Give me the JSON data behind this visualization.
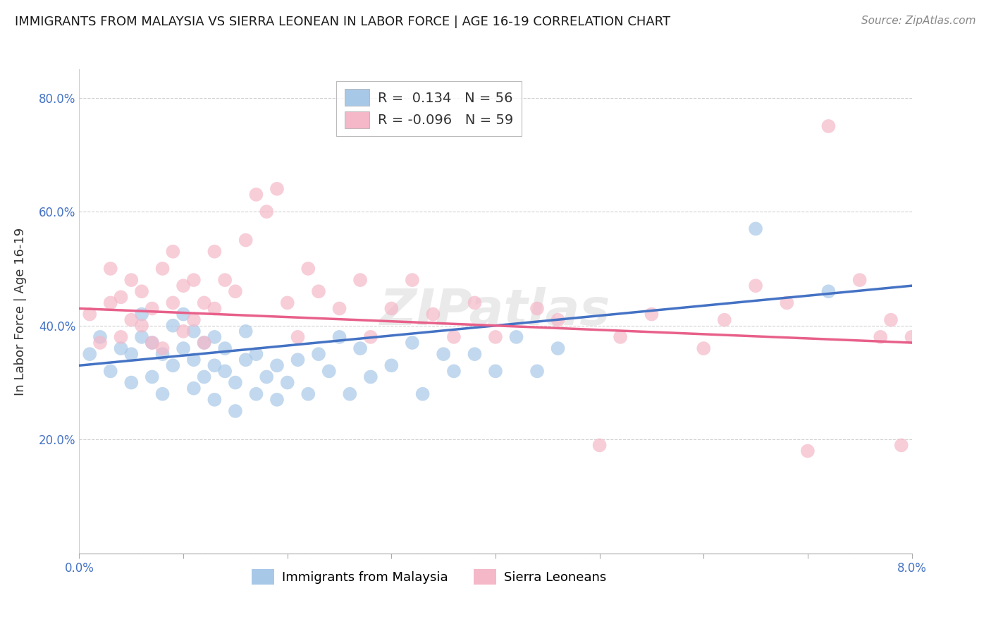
{
  "title": "IMMIGRANTS FROM MALAYSIA VS SIERRA LEONEAN IN LABOR FORCE | AGE 16-19 CORRELATION CHART",
  "source": "Source: ZipAtlas.com",
  "ylabel": "In Labor Force | Age 16-19",
  "watermark": "ZIPatlas",
  "malaysia_R": 0.134,
  "malaysia_N": 56,
  "sierraleone_R": -0.096,
  "sierraleone_N": 59,
  "x_label": "Immigrants from Malaysia",
  "x2_label": "Sierra Leoneans",
  "x_min": 0.0,
  "x_max": 0.08,
  "y_min": 0.0,
  "y_max": 0.85,
  "malaysia_color": "#a8c8e8",
  "sierraleone_color": "#f4b8c8",
  "malaysia_line_color": "#4472c4",
  "sierraleone_line_color": "#e8608a",
  "grid_color": "#cccccc",
  "title_color": "#1a1a1a",
  "tick_color": "#4472c4",
  "background_color": "#ffffff",
  "malaysia_line_y0": 0.33,
  "malaysia_line_y1": 0.47,
  "sierraleone_line_y0": 0.43,
  "sierraleone_line_y1": 0.37,
  "malaysia_x": [
    0.001,
    0.002,
    0.003,
    0.004,
    0.005,
    0.005,
    0.006,
    0.006,
    0.007,
    0.007,
    0.008,
    0.008,
    0.009,
    0.009,
    0.01,
    0.01,
    0.011,
    0.011,
    0.011,
    0.012,
    0.012,
    0.013,
    0.013,
    0.013,
    0.014,
    0.014,
    0.015,
    0.015,
    0.016,
    0.016,
    0.017,
    0.017,
    0.018,
    0.019,
    0.019,
    0.02,
    0.021,
    0.022,
    0.023,
    0.024,
    0.025,
    0.026,
    0.027,
    0.028,
    0.03,
    0.032,
    0.033,
    0.035,
    0.036,
    0.038,
    0.04,
    0.042,
    0.044,
    0.046,
    0.065,
    0.072
  ],
  "malaysia_y": [
    0.35,
    0.38,
    0.32,
    0.36,
    0.3,
    0.35,
    0.38,
    0.42,
    0.31,
    0.37,
    0.28,
    0.35,
    0.33,
    0.4,
    0.36,
    0.42,
    0.29,
    0.34,
    0.39,
    0.31,
    0.37,
    0.27,
    0.33,
    0.38,
    0.32,
    0.36,
    0.25,
    0.3,
    0.34,
    0.39,
    0.28,
    0.35,
    0.31,
    0.27,
    0.33,
    0.3,
    0.34,
    0.28,
    0.35,
    0.32,
    0.38,
    0.28,
    0.36,
    0.31,
    0.33,
    0.37,
    0.28,
    0.35,
    0.32,
    0.35,
    0.32,
    0.38,
    0.32,
    0.36,
    0.57,
    0.46
  ],
  "sierraleone_x": [
    0.001,
    0.002,
    0.003,
    0.003,
    0.004,
    0.004,
    0.005,
    0.005,
    0.006,
    0.006,
    0.007,
    0.007,
    0.008,
    0.008,
    0.009,
    0.009,
    0.01,
    0.01,
    0.011,
    0.011,
    0.012,
    0.012,
    0.013,
    0.013,
    0.014,
    0.015,
    0.016,
    0.017,
    0.018,
    0.019,
    0.02,
    0.021,
    0.022,
    0.023,
    0.025,
    0.027,
    0.028,
    0.03,
    0.032,
    0.034,
    0.036,
    0.038,
    0.04,
    0.044,
    0.046,
    0.05,
    0.052,
    0.055,
    0.06,
    0.062,
    0.065,
    0.068,
    0.07,
    0.072,
    0.075,
    0.077,
    0.078,
    0.079,
    0.08
  ],
  "sierraleone_y": [
    0.42,
    0.37,
    0.44,
    0.5,
    0.38,
    0.45,
    0.41,
    0.48,
    0.4,
    0.46,
    0.37,
    0.43,
    0.5,
    0.36,
    0.44,
    0.53,
    0.39,
    0.47,
    0.41,
    0.48,
    0.44,
    0.37,
    0.53,
    0.43,
    0.48,
    0.46,
    0.55,
    0.63,
    0.6,
    0.64,
    0.44,
    0.38,
    0.5,
    0.46,
    0.43,
    0.48,
    0.38,
    0.43,
    0.48,
    0.42,
    0.38,
    0.44,
    0.38,
    0.43,
    0.41,
    0.19,
    0.38,
    0.42,
    0.36,
    0.41,
    0.47,
    0.44,
    0.18,
    0.75,
    0.48,
    0.38,
    0.41,
    0.19,
    0.38
  ]
}
